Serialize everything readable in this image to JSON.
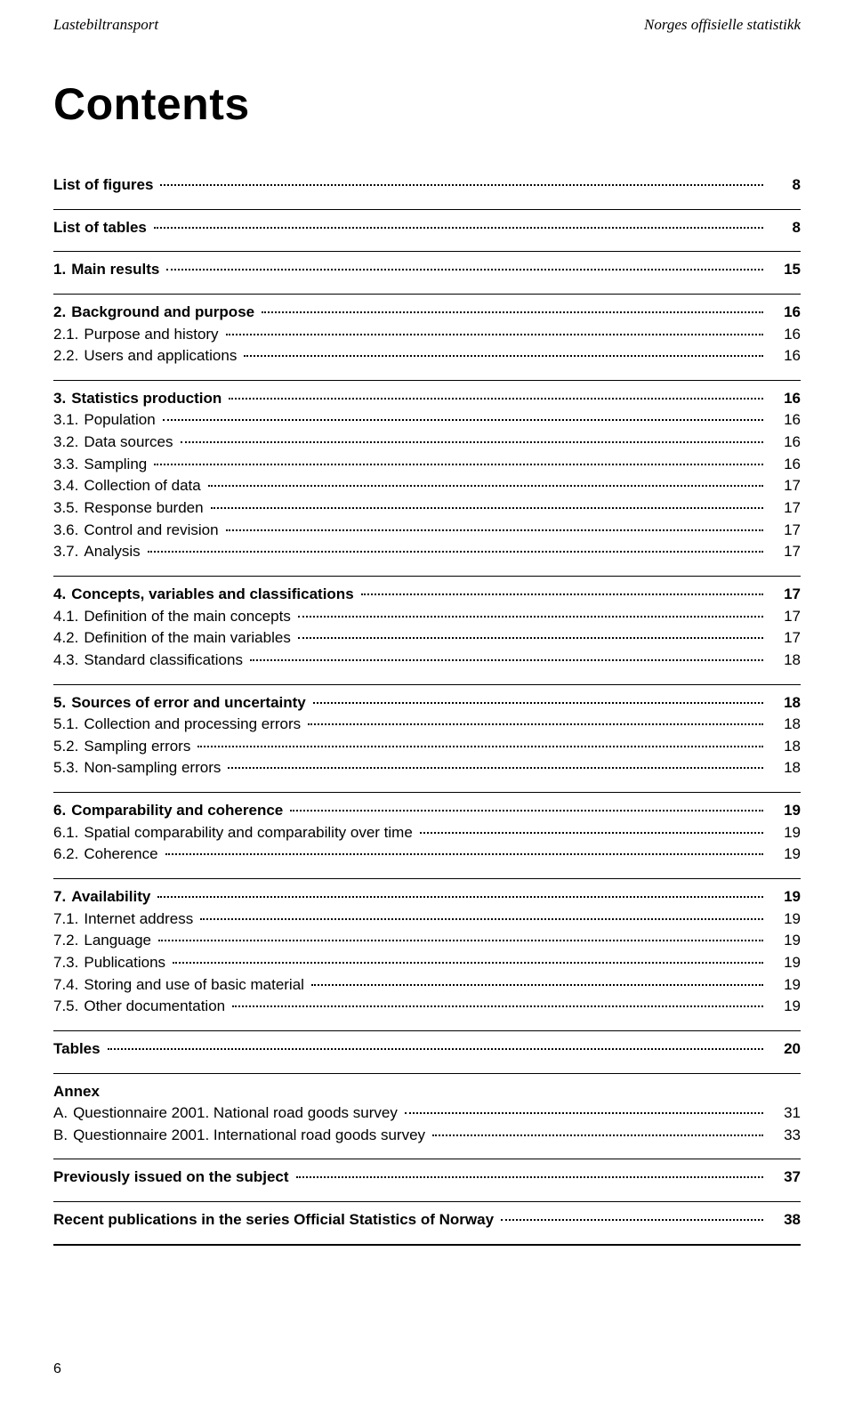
{
  "header": {
    "left": "Lastebiltransport",
    "right": "Norges offisielle statistikk"
  },
  "title": "Contents",
  "blocks": [
    {
      "rule_before": "none",
      "rows": [
        {
          "bold": true,
          "num": "",
          "label": "List of figures",
          "page": "8"
        }
      ]
    },
    {
      "rule_before": "thin",
      "rows": [
        {
          "bold": true,
          "num": "",
          "label": "List of tables",
          "page": "8"
        }
      ]
    },
    {
      "rule_before": "thin",
      "rows": [
        {
          "bold": true,
          "num": "1.",
          "label": "Main results",
          "page": "15"
        }
      ]
    },
    {
      "rule_before": "thin",
      "rows": [
        {
          "bold": true,
          "num": "2.",
          "label": "Background and purpose",
          "page": "16"
        },
        {
          "bold": false,
          "num": "2.1.",
          "label": "Purpose and history",
          "page": "16"
        },
        {
          "bold": false,
          "num": "2.2.",
          "label": "Users and applications",
          "page": "16"
        }
      ]
    },
    {
      "rule_before": "thin",
      "rows": [
        {
          "bold": true,
          "num": "3.",
          "label": "Statistics production",
          "page": "16"
        },
        {
          "bold": false,
          "num": "3.1.",
          "label": "Population",
          "page": "16"
        },
        {
          "bold": false,
          "num": "3.2.",
          "label": "Data sources",
          "page": "16"
        },
        {
          "bold": false,
          "num": "3.3.",
          "label": "Sampling",
          "page": "16"
        },
        {
          "bold": false,
          "num": "3.4.",
          "label": "Collection of data",
          "page": "17"
        },
        {
          "bold": false,
          "num": "3.5.",
          "label": "Response burden",
          "page": "17"
        },
        {
          "bold": false,
          "num": "3.6.",
          "label": "Control and revision",
          "page": "17"
        },
        {
          "bold": false,
          "num": "3.7.",
          "label": "Analysis",
          "page": "17"
        }
      ]
    },
    {
      "rule_before": "thin",
      "rows": [
        {
          "bold": true,
          "num": "4.",
          "label": "Concepts, variables and classifications",
          "page": "17"
        },
        {
          "bold": false,
          "num": "4.1.",
          "label": "Definition of the main concepts",
          "page": "17"
        },
        {
          "bold": false,
          "num": "4.2.",
          "label": "Definition of the main variables",
          "page": "17"
        },
        {
          "bold": false,
          "num": "4.3.",
          "label": "Standard classifications",
          "page": "18"
        }
      ]
    },
    {
      "rule_before": "thin",
      "rows": [
        {
          "bold": true,
          "num": "5.",
          "label": "Sources of error and uncertainty",
          "page": "18"
        },
        {
          "bold": false,
          "num": "5.1.",
          "label": "Collection and processing errors",
          "page": "18"
        },
        {
          "bold": false,
          "num": "5.2.",
          "label": "Sampling errors",
          "page": "18"
        },
        {
          "bold": false,
          "num": "5.3.",
          "label": "Non-sampling errors",
          "page": "18"
        }
      ]
    },
    {
      "rule_before": "thin",
      "rows": [
        {
          "bold": true,
          "num": "6.",
          "label": "Comparability and coherence",
          "page": "19"
        },
        {
          "bold": false,
          "num": "6.1.",
          "label": "Spatial comparability and comparability over time",
          "page": "19"
        },
        {
          "bold": false,
          "num": "6.2.",
          "label": "Coherence",
          "page": "19"
        }
      ]
    },
    {
      "rule_before": "thin",
      "rows": [
        {
          "bold": true,
          "num": "7.",
          "label": "Availability",
          "page": "19"
        },
        {
          "bold": false,
          "num": "7.1.",
          "label": "Internet address",
          "page": "19"
        },
        {
          "bold": false,
          "num": "7.2.",
          "label": "Language",
          "page": "19"
        },
        {
          "bold": false,
          "num": "7.3.",
          "label": "Publications",
          "page": "19"
        },
        {
          "bold": false,
          "num": "7.4.",
          "label": "Storing and use of basic material",
          "page": "19"
        },
        {
          "bold": false,
          "num": "7.5.",
          "label": "Other documentation",
          "page": "19"
        }
      ]
    },
    {
      "rule_before": "thin",
      "rows": [
        {
          "bold": true,
          "num": "",
          "label": "Tables",
          "page": "20"
        }
      ]
    },
    {
      "rule_before": "thin",
      "rows": [
        {
          "bold": true,
          "num": "",
          "label": "Annex",
          "page": ""
        },
        {
          "bold": false,
          "num": "A.",
          "label": "Questionnaire 2001. National road goods survey",
          "page": "31"
        },
        {
          "bold": false,
          "num": "B.",
          "label": "Questionnaire 2001. International road goods survey",
          "page": "33"
        }
      ]
    },
    {
      "rule_before": "thin",
      "rows": [
        {
          "bold": true,
          "num": "",
          "label": "Previously issued on the subject",
          "page": "37"
        }
      ]
    },
    {
      "rule_before": "thin",
      "rows": [
        {
          "bold": true,
          "num": "",
          "label": "Recent publications in the series Official Statistics of Norway",
          "page": "38"
        }
      ],
      "rule_after": "thick"
    }
  ],
  "footer_page": "6"
}
